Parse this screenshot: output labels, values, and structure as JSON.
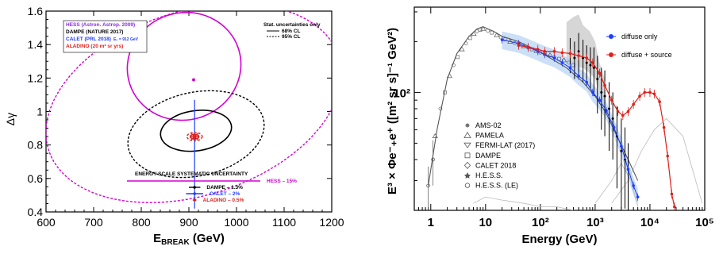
{
  "chart_data": [
    {
      "type": "scatter",
      "title": "",
      "xlabel_main": "E",
      "xlabel_sub": "BREAK",
      "xlabel_unit": " (GeV)",
      "ylabel": "Δγ",
      "xlim": [
        600,
        1200
      ],
      "ylim": [
        0.4,
        1.6
      ],
      "x_ticks": [
        "600",
        "700",
        "800",
        "900",
        "1000",
        "1100",
        "1200"
      ],
      "y_ticks": [
        "0.4",
        "0.6",
        "0.8",
        "1",
        "1.2",
        "1.4",
        "1.6"
      ],
      "legend_top_left": [
        {
          "label": "HESS (Astron. Astrop. 2009)",
          "color": "#8a2be2"
        },
        {
          "label": "DAMPE (NATURE 2017)",
          "color": "#000000"
        },
        {
          "label": "CALET (PRL 2018)",
          "sub": "E₀ = 912 GeV",
          "color": "#1f3cff"
        },
        {
          "label": "ALADINO (20 m² sr yrs)",
          "color": "#e0201a"
        }
      ],
      "legend_top_right": {
        "title": "Stat. uncertainties only",
        "items": [
          {
            "label": "68% CL",
            "style": "solid"
          },
          {
            "label": "95% CL",
            "style": "dashed"
          }
        ]
      },
      "systematics": {
        "title": "ENERGY SCALE SYSTEMATIC UNCERTAINTY",
        "items": [
          {
            "label": "HESS – 15%",
            "color": "#d400d4",
            "x": [
              770,
              1050
            ]
          },
          {
            "label": "DAMPE – 1.3%",
            "color": "#000000",
            "x": [
              900,
              924
            ]
          },
          {
            "label": "CALET – 2%",
            "color": "#1f3cff",
            "x": [
              894,
              930
            ]
          },
          {
            "label": "ALADINO – 0.5%",
            "color": "#e0201a",
            "x": [
              908,
              916
            ]
          }
        ]
      },
      "ellipses": [
        {
          "name": "HESS",
          "color": "#d400d4",
          "style": "solid",
          "cx": 890,
          "cy": 1.27,
          "rx": 120,
          "ry": 0.32,
          "rot": -18
        },
        {
          "name": "HESS",
          "color": "#d400d4",
          "style": "dashed",
          "cx": 910,
          "cy": 1.05,
          "rx": 320,
          "ry": 0.55,
          "rot": -18
        },
        {
          "name": "DAMPE",
          "color": "#000000",
          "style": "solid",
          "cx": 915,
          "cy": 0.885,
          "rx": 75,
          "ry": 0.12,
          "rot": -8
        },
        {
          "name": "DAMPE",
          "color": "#000000",
          "style": "dashed",
          "cx": 915,
          "cy": 0.865,
          "rx": 145,
          "ry": 0.25,
          "rot": -12
        },
        {
          "name": "ALADINO",
          "color": "#e0201a",
          "style": "solid",
          "cx": 912,
          "cy": 0.85,
          "rx": 9,
          "ry": 0.014,
          "rot": 0
        },
        {
          "name": "ALADINO",
          "color": "#e0201a",
          "style": "dashed",
          "cx": 912,
          "cy": 0.85,
          "rx": 16,
          "ry": 0.025,
          "rot": 0
        }
      ],
      "points": [
        {
          "name": "HESS",
          "color": "#d400d4",
          "x": 910,
          "y": 1.19
        },
        {
          "name": "CALET",
          "color": "#1f3cff",
          "x": 912,
          "y": 0.84,
          "y_err": [
            0.42,
            1.07
          ]
        },
        {
          "name": "ALADINO",
          "color": "#e0201a",
          "x": 912,
          "y": 0.85
        }
      ]
    },
    {
      "type": "scatter",
      "title": "",
      "xlabel": "Energy (GeV)",
      "ylabel": "E³ × Φe⁻₊e⁺ ([m² sr s]⁻¹ GeV²)",
      "log_x": true,
      "log_y": true,
      "xlim": [
        0.5,
        100000
      ],
      "ylim": [
        20,
        320
      ],
      "x_ticks": [
        "1",
        "10",
        "10²",
        "10³",
        "10⁴",
        "10⁵"
      ],
      "y_ticks": [
        "10²"
      ],
      "legend_series": [
        {
          "label": "diffuse only",
          "color": "#1f3cff"
        },
        {
          "label": "diffuse + source",
          "color": "#e0201a"
        }
      ],
      "legend_datasets": [
        {
          "label": "AMS-02",
          "marker": "filled-circle"
        },
        {
          "label": "PAMELA",
          "marker": "open-triangle"
        },
        {
          "label": "FERMI-LAT (2017)",
          "marker": "open-triangle-down"
        },
        {
          "label": "DAMPE",
          "marker": "open-square"
        },
        {
          "label": "CALET 2018",
          "marker": "open-diamond"
        },
        {
          "label": "H.E.S.S.",
          "marker": "filled-star"
        },
        {
          "label": "H.E.S.S. (LE)",
          "marker": "open-circle"
        }
      ],
      "series": [
        {
          "name": "model-low",
          "color": "#555555",
          "x": [
            0.9,
            1.3,
            2,
            3,
            5,
            7,
            9,
            14,
            20,
            40,
            80,
            150,
            300,
            600,
            1000,
            1600,
            2500,
            4000,
            6000
          ],
          "y": [
            28,
            60,
            120,
            170,
            215,
            238,
            245,
            230,
            215,
            200,
            180,
            160,
            140,
            115,
            95,
            75,
            55,
            40,
            30
          ]
        },
        {
          "name": "diffuse only",
          "color": "#1f3cff",
          "x": [
            20,
            40,
            60,
            90,
            120,
            180,
            250,
            350,
            500,
            700,
            900,
            1200,
            1600,
            2200,
            3000,
            4000,
            5000,
            6000
          ],
          "y": [
            205,
            195,
            185,
            175,
            168,
            160,
            150,
            140,
            125,
            115,
            100,
            90,
            78,
            62,
            48,
            35,
            28,
            24
          ]
        },
        {
          "name": "diffuse + source",
          "color": "#e0201a",
          "x": [
            40,
            60,
            90,
            120,
            180,
            250,
            350,
            500,
            700,
            900,
            1200,
            1500,
            2000,
            2600,
            3200,
            4000,
            5000,
            6500,
            8000,
            10000,
            12000,
            15000,
            18000,
            21000,
            25000,
            28000
          ],
          "y": [
            190,
            185,
            180,
            175,
            175,
            172,
            170,
            165,
            160,
            150,
            130,
            110,
            90,
            77,
            73,
            77,
            85,
            95,
            100,
            100,
            98,
            88,
            62,
            42,
            25,
            21
          ]
        }
      ]
    }
  ]
}
